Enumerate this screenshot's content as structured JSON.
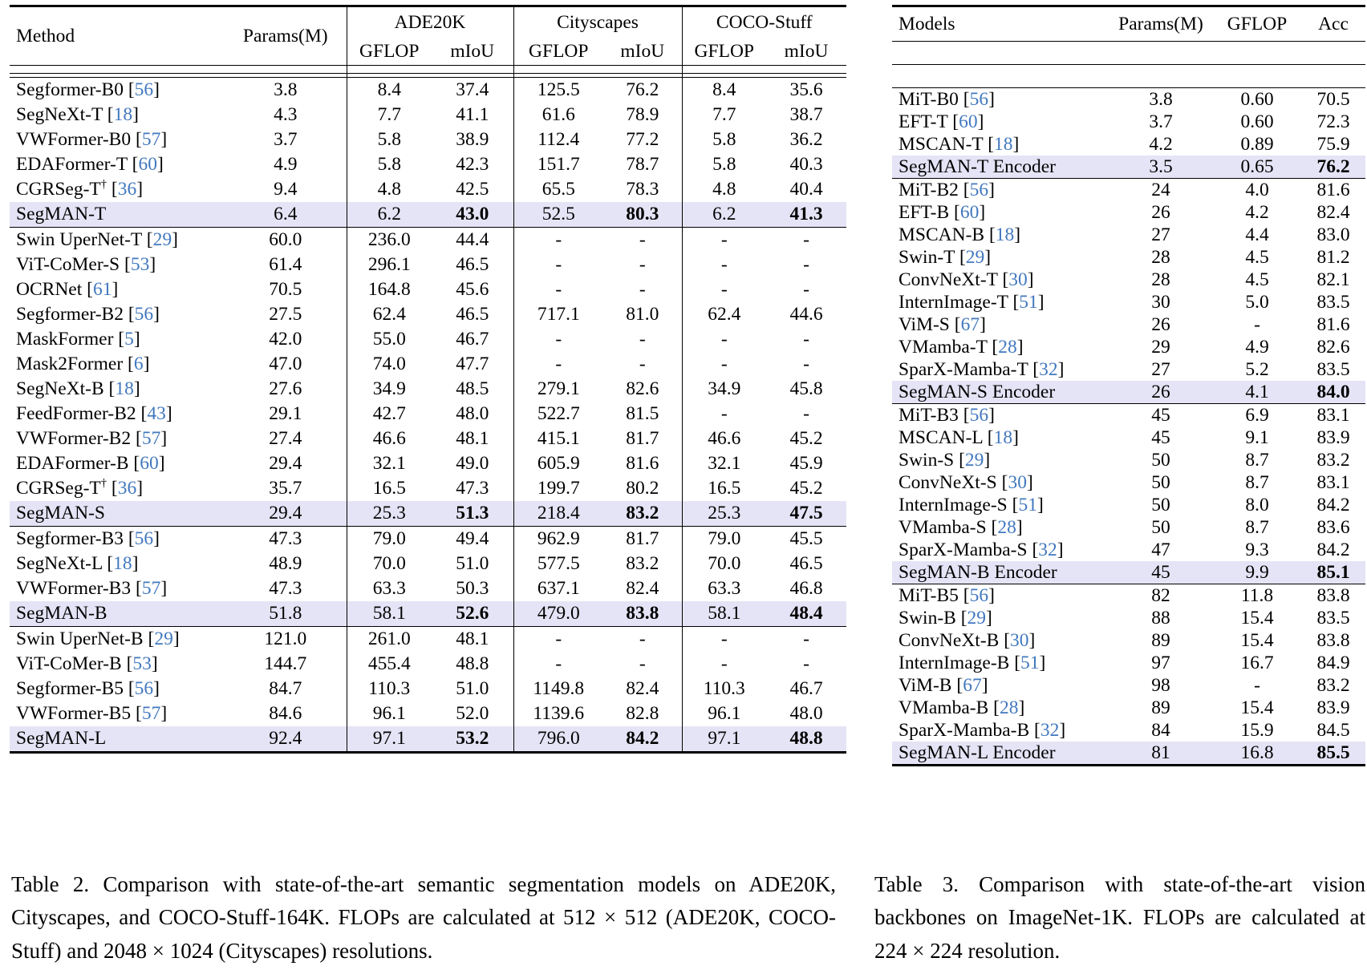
{
  "table2": {
    "caption": "Table 2.  Comparison with state-of-the-art semantic segmentation models on ADE20K, Cityscapes, and COCO-Stuff-164K. FLOPs are calculated at 512 × 512 (ADE20K, COCO-Stuff) and 2048 × 1024 (Cityscapes) resolutions.",
    "headers": {
      "method": "Method",
      "params": "Params(M)",
      "group1": "ADE20K",
      "group2": "Cityscapes",
      "group3": "COCO-Stuff",
      "gflop": "GFLOP",
      "miou": "mIoU"
    },
    "groups": [
      {
        "rows": [
          {
            "method": "Segformer-B0",
            "ref": "56",
            "dagger": false,
            "highlight": false,
            "values": [
              "3.8",
              "8.4",
              "37.4",
              "125.5",
              "76.2",
              "8.4",
              "35.6"
            ],
            "bold": []
          },
          {
            "method": "SegNeXt-T",
            "ref": "18",
            "dagger": false,
            "highlight": false,
            "values": [
              "4.3",
              "7.7",
              "41.1",
              "61.6",
              "78.9",
              "7.7",
              "38.7"
            ],
            "bold": []
          },
          {
            "method": "VWFormer-B0",
            "ref": "57",
            "dagger": false,
            "highlight": false,
            "values": [
              "3.7",
              "5.8",
              "38.9",
              "112.4",
              "77.2",
              "5.8",
              "36.2"
            ],
            "bold": []
          },
          {
            "method": "EDAFormer-T",
            "ref": "60",
            "dagger": false,
            "highlight": false,
            "values": [
              "4.9",
              "5.8",
              "42.3",
              "151.7",
              "78.7",
              "5.8",
              "40.3"
            ],
            "bold": []
          },
          {
            "method": "CGRSeg-T",
            "ref": "36",
            "dagger": true,
            "highlight": false,
            "values": [
              "9.4",
              "4.8",
              "42.5",
              "65.5",
              "78.3",
              "4.8",
              "40.4"
            ],
            "bold": []
          },
          {
            "method": "SegMAN-T",
            "ref": null,
            "dagger": false,
            "highlight": true,
            "values": [
              "6.4",
              "6.2",
              "43.0",
              "52.5",
              "80.3",
              "6.2",
              "41.3"
            ],
            "bold": [
              2,
              4,
              6
            ]
          }
        ]
      },
      {
        "rows": [
          {
            "method": "Swin UperNet-T",
            "ref": "29",
            "dagger": false,
            "highlight": false,
            "values": [
              "60.0",
              "236.0",
              "44.4",
              "-",
              "-",
              "-",
              "-"
            ],
            "bold": []
          },
          {
            "method": "ViT-CoMer-S",
            "ref": "53",
            "dagger": false,
            "highlight": false,
            "values": [
              "61.4",
              "296.1",
              "46.5",
              "-",
              "-",
              "-",
              "-"
            ],
            "bold": []
          },
          {
            "method": "OCRNet",
            "ref": "61",
            "dagger": false,
            "highlight": false,
            "values": [
              "70.5",
              "164.8",
              "45.6",
              "-",
              "-",
              "-",
              "-"
            ],
            "bold": []
          },
          {
            "method": "Segformer-B2",
            "ref": "56",
            "dagger": false,
            "highlight": false,
            "values": [
              "27.5",
              "62.4",
              "46.5",
              "717.1",
              "81.0",
              "62.4",
              "44.6"
            ],
            "bold": []
          },
          {
            "method": "MaskFormer",
            "ref": "5",
            "dagger": false,
            "highlight": false,
            "values": [
              "42.0",
              "55.0",
              "46.7",
              "-",
              "-",
              "-",
              "-"
            ],
            "bold": []
          },
          {
            "method": "Mask2Former",
            "ref": "6",
            "dagger": false,
            "highlight": false,
            "values": [
              "47.0",
              "74.0",
              "47.7",
              "-",
              "-",
              "-",
              "-"
            ],
            "bold": []
          },
          {
            "method": "SegNeXt-B",
            "ref": "18",
            "dagger": false,
            "highlight": false,
            "values": [
              "27.6",
              "34.9",
              "48.5",
              "279.1",
              "82.6",
              "34.9",
              "45.8"
            ],
            "bold": []
          },
          {
            "method": "FeedFormer-B2",
            "ref": "43",
            "dagger": false,
            "highlight": false,
            "values": [
              "29.1",
              "42.7",
              "48.0",
              "522.7",
              "81.5",
              "-",
              "-"
            ],
            "bold": []
          },
          {
            "method": "VWFormer-B2",
            "ref": "57",
            "dagger": false,
            "highlight": false,
            "values": [
              "27.4",
              "46.6",
              "48.1",
              "415.1",
              "81.7",
              "46.6",
              "45.2"
            ],
            "bold": []
          },
          {
            "method": "EDAFormer-B",
            "ref": "60",
            "dagger": false,
            "highlight": false,
            "values": [
              "29.4",
              "32.1",
              "49.0",
              "605.9",
              "81.6",
              "32.1",
              "45.9"
            ],
            "bold": []
          },
          {
            "method": "CGRSeg-T",
            "ref": "36",
            "dagger": true,
            "highlight": false,
            "values": [
              "35.7",
              "16.5",
              "47.3",
              "199.7",
              "80.2",
              "16.5",
              "45.2"
            ],
            "bold": []
          },
          {
            "method": "SegMAN-S",
            "ref": null,
            "dagger": false,
            "highlight": true,
            "values": [
              "29.4",
              "25.3",
              "51.3",
              "218.4",
              "83.2",
              "25.3",
              "47.5"
            ],
            "bold": [
              2,
              4,
              6
            ]
          }
        ]
      },
      {
        "rows": [
          {
            "method": "Segformer-B3",
            "ref": "56",
            "dagger": false,
            "highlight": false,
            "values": [
              "47.3",
              "79.0",
              "49.4",
              "962.9",
              "81.7",
              "79.0",
              "45.5"
            ],
            "bold": []
          },
          {
            "method": "SegNeXt-L",
            "ref": "18",
            "dagger": false,
            "highlight": false,
            "values": [
              "48.9",
              "70.0",
              "51.0",
              "577.5",
              "83.2",
              "70.0",
              "46.5"
            ],
            "bold": []
          },
          {
            "method": "VWFormer-B3",
            "ref": "57",
            "dagger": false,
            "highlight": false,
            "values": [
              "47.3",
              "63.3",
              "50.3",
              "637.1",
              "82.4",
              "63.3",
              "46.8"
            ],
            "bold": []
          },
          {
            "method": "SegMAN-B",
            "ref": null,
            "dagger": false,
            "highlight": true,
            "values": [
              "51.8",
              "58.1",
              "52.6",
              "479.0",
              "83.8",
              "58.1",
              "48.4"
            ],
            "bold": [
              2,
              4,
              6
            ]
          }
        ]
      },
      {
        "rows": [
          {
            "method": "Swin UperNet-B",
            "ref": "29",
            "dagger": false,
            "highlight": false,
            "values": [
              "121.0",
              "261.0",
              "48.1",
              "-",
              "-",
              "-",
              "-"
            ],
            "bold": []
          },
          {
            "method": "ViT-CoMer-B",
            "ref": "53",
            "dagger": false,
            "highlight": false,
            "values": [
              "144.7",
              "455.4",
              "48.8",
              "-",
              "-",
              "-",
              "-"
            ],
            "bold": []
          },
          {
            "method": "Segformer-B5",
            "ref": "56",
            "dagger": false,
            "highlight": false,
            "values": [
              "84.7",
              "110.3",
              "51.0",
              "1149.8",
              "82.4",
              "110.3",
              "46.7"
            ],
            "bold": []
          },
          {
            "method": "VWFormer-B5",
            "ref": "57",
            "dagger": false,
            "highlight": false,
            "values": [
              "84.6",
              "96.1",
              "52.0",
              "1139.6",
              "82.8",
              "96.1",
              "48.0"
            ],
            "bold": []
          },
          {
            "method": "SegMAN-L",
            "ref": null,
            "dagger": false,
            "highlight": true,
            "values": [
              "92.4",
              "97.1",
              "53.2",
              "796.0",
              "84.2",
              "97.1",
              "48.8"
            ],
            "bold": [
              2,
              4,
              6
            ]
          }
        ]
      }
    ]
  },
  "table3": {
    "caption": "Table 3.  Comparison with state-of-the-art vision backbones on ImageNet-1K. FLOPs are calculated at 224 × 224 resolution.",
    "headers": {
      "models": "Models",
      "params": "Params(M)",
      "gflop": "GFLOP",
      "acc": "Acc"
    },
    "groups": [
      {
        "rows": [
          {
            "method": "MiT-B0",
            "ref": "56",
            "dagger": false,
            "highlight": false,
            "values": [
              "3.8",
              "0.60",
              "70.5"
            ],
            "bold": []
          },
          {
            "method": "EFT-T",
            "ref": "60",
            "dagger": false,
            "highlight": false,
            "values": [
              "3.7",
              "0.60",
              "72.3"
            ],
            "bold": []
          },
          {
            "method": "MSCAN-T",
            "ref": "18",
            "dagger": false,
            "highlight": false,
            "values": [
              "4.2",
              "0.89",
              "75.9"
            ],
            "bold": []
          },
          {
            "method": "SegMAN-T Encoder",
            "ref": null,
            "dagger": false,
            "highlight": true,
            "values": [
              "3.5",
              "0.65",
              "76.2"
            ],
            "bold": [
              2
            ]
          }
        ]
      },
      {
        "rows": [
          {
            "method": "MiT-B2",
            "ref": "56",
            "dagger": false,
            "highlight": false,
            "values": [
              "24",
              "4.0",
              "81.6"
            ],
            "bold": []
          },
          {
            "method": "EFT-B",
            "ref": "60",
            "dagger": false,
            "highlight": false,
            "values": [
              "26",
              "4.2",
              "82.4"
            ],
            "bold": []
          },
          {
            "method": "MSCAN-B",
            "ref": "18",
            "dagger": false,
            "highlight": false,
            "values": [
              "27",
              "4.4",
              "83.0"
            ],
            "bold": []
          },
          {
            "method": "Swin-T",
            "ref": "29",
            "dagger": false,
            "highlight": false,
            "values": [
              "28",
              "4.5",
              "81.2"
            ],
            "bold": []
          },
          {
            "method": "ConvNeXt-T",
            "ref": "30",
            "dagger": false,
            "highlight": false,
            "values": [
              "28",
              "4.5",
              "82.1"
            ],
            "bold": []
          },
          {
            "method": "InternImage-T",
            "ref": "51",
            "dagger": false,
            "highlight": false,
            "values": [
              "30",
              "5.0",
              "83.5"
            ],
            "bold": []
          },
          {
            "method": "ViM-S",
            "ref": "67",
            "dagger": false,
            "highlight": false,
            "values": [
              "26",
              "-",
              "81.6"
            ],
            "bold": []
          },
          {
            "method": "VMamba-T",
            "ref": "28",
            "dagger": false,
            "highlight": false,
            "values": [
              "29",
              "4.9",
              "82.6"
            ],
            "bold": []
          },
          {
            "method": "SparX-Mamba-T",
            "ref": "32",
            "dagger": false,
            "highlight": false,
            "values": [
              "27",
              "5.2",
              "83.5"
            ],
            "bold": []
          },
          {
            "method": "SegMAN-S Encoder",
            "ref": null,
            "dagger": false,
            "highlight": true,
            "values": [
              "26",
              "4.1",
              "84.0"
            ],
            "bold": [
              2
            ]
          }
        ]
      },
      {
        "rows": [
          {
            "method": "MiT-B3",
            "ref": "56",
            "dagger": false,
            "highlight": false,
            "values": [
              "45",
              "6.9",
              "83.1"
            ],
            "bold": []
          },
          {
            "method": "MSCAN-L",
            "ref": "18",
            "dagger": false,
            "highlight": false,
            "values": [
              "45",
              "9.1",
              "83.9"
            ],
            "bold": []
          },
          {
            "method": "Swin-S",
            "ref": "29",
            "dagger": false,
            "highlight": false,
            "values": [
              "50",
              "8.7",
              "83.2"
            ],
            "bold": []
          },
          {
            "method": "ConvNeXt-S",
            "ref": "30",
            "dagger": false,
            "highlight": false,
            "values": [
              "50",
              "8.7",
              "83.1"
            ],
            "bold": []
          },
          {
            "method": "InternImage-S",
            "ref": "51",
            "dagger": false,
            "highlight": false,
            "values": [
              "50",
              "8.0",
              "84.2"
            ],
            "bold": []
          },
          {
            "method": "VMamba-S",
            "ref": "28",
            "dagger": false,
            "highlight": false,
            "values": [
              "50",
              "8.7",
              "83.6"
            ],
            "bold": []
          },
          {
            "method": "SparX-Mamba-S",
            "ref": "32",
            "dagger": false,
            "highlight": false,
            "values": [
              "47",
              "9.3",
              "84.2"
            ],
            "bold": []
          },
          {
            "method": "SegMAN-B Encoder",
            "ref": null,
            "dagger": false,
            "highlight": true,
            "values": [
              "45",
              "9.9",
              "85.1"
            ],
            "bold": [
              2
            ]
          }
        ]
      },
      {
        "rows": [
          {
            "method": "MiT-B5",
            "ref": "56",
            "dagger": false,
            "highlight": false,
            "values": [
              "82",
              "11.8",
              "83.8"
            ],
            "bold": []
          },
          {
            "method": "Swin-B",
            "ref": "29",
            "dagger": false,
            "highlight": false,
            "values": [
              "88",
              "15.4",
              "83.5"
            ],
            "bold": []
          },
          {
            "method": "ConvNeXt-B",
            "ref": "30",
            "dagger": false,
            "highlight": false,
            "values": [
              "89",
              "15.4",
              "83.8"
            ],
            "bold": []
          },
          {
            "method": "InternImage-B",
            "ref": "51",
            "dagger": false,
            "highlight": false,
            "values": [
              "97",
              "16.7",
              "84.9"
            ],
            "bold": []
          },
          {
            "method": "ViM-B",
            "ref": "67",
            "dagger": false,
            "highlight": false,
            "values": [
              "98",
              "-",
              "83.2"
            ],
            "bold": []
          },
          {
            "method": "VMamba-B",
            "ref": "28",
            "dagger": false,
            "highlight": false,
            "values": [
              "89",
              "15.4",
              "83.9"
            ],
            "bold": []
          },
          {
            "method": "SparX-Mamba-B",
            "ref": "32",
            "dagger": false,
            "highlight": false,
            "values": [
              "84",
              "15.9",
              "84.5"
            ],
            "bold": []
          },
          {
            "method": "SegMAN-L Encoder",
            "ref": null,
            "dagger": false,
            "highlight": true,
            "values": [
              "81",
              "16.8",
              "85.5"
            ],
            "bold": [
              2
            ]
          }
        ]
      }
    ]
  },
  "colors": {
    "highlight_row": "#E5E4F6",
    "citation_blue": "#4178BE",
    "rule_black": "#000000"
  }
}
